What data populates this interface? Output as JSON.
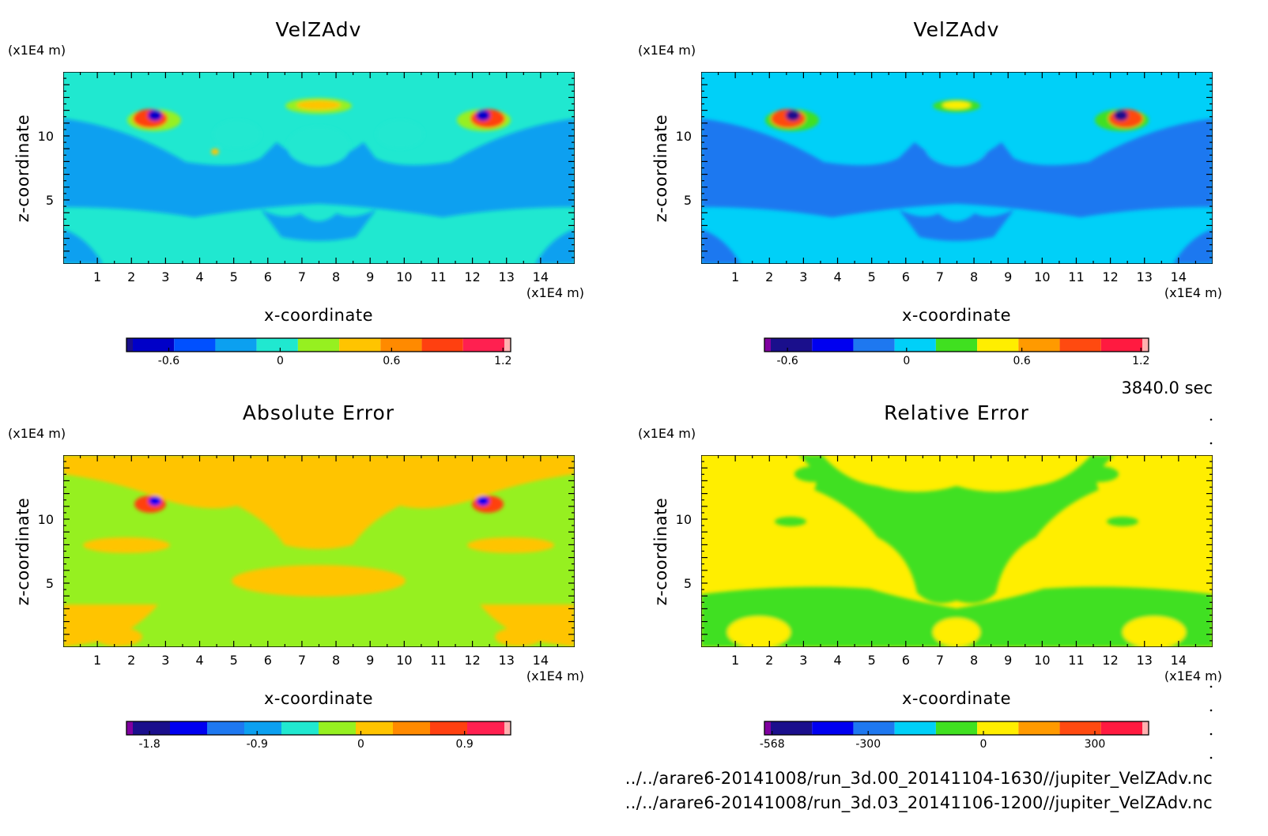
{
  "time_label": "3840.0 sec",
  "footer": {
    "line1": "../../arare6-20141008/run_3d.00_20141104-1630//jupiter_VelZAdv.nc",
    "line2": "../../arare6-20141008/run_3d.03_20141106-1200//jupiter_VelZAdv.nc"
  },
  "chart_data": [
    {
      "type": "heatmap",
      "title": "VelZAdv",
      "xlabel": "x-coordinate",
      "ylabel": "z-coordinate",
      "x_unit": "(x1E4 m)",
      "y_unit": "(x1E4 m)",
      "xlim": [
        0,
        15
      ],
      "ylim": [
        0,
        15
      ],
      "x_ticks": [
        1,
        2,
        3,
        4,
        5,
        6,
        7,
        8,
        9,
        10,
        11,
        12,
        13,
        14
      ],
      "y_ticks": [
        5,
        10
      ],
      "background_level": "0",
      "colorbar": {
        "colors": [
          "#1a0f8c",
          "#0000c8",
          "#0050ff",
          "#0ca0f0",
          "#20e8d0",
          "#96f020",
          "#ffc400",
          "#ff8a00",
          "#ff4010",
          "#ff2050",
          "#ffb0b0"
        ],
        "tick_labels": [
          "-0.6",
          "0",
          "0.6",
          "1.2"
        ],
        "tick_fracs": [
          0.11,
          0.4,
          0.69,
          0.98
        ]
      }
    },
    {
      "type": "heatmap",
      "title": "VelZAdv",
      "xlabel": "x-coordinate",
      "ylabel": "z-coordinate",
      "x_unit": "(x1E4 m)",
      "y_unit": "(x1E4 m)",
      "xlim": [
        0,
        15
      ],
      "ylim": [
        0,
        15
      ],
      "x_ticks": [
        1,
        2,
        3,
        4,
        5,
        6,
        7,
        8,
        9,
        10,
        11,
        12,
        13,
        14
      ],
      "y_ticks": [
        5,
        10
      ],
      "background_level": "0",
      "colorbar": {
        "colors": [
          "#8000a0",
          "#1a0f8c",
          "#0000f0",
          "#1e78f0",
          "#00d0f8",
          "#40e020",
          "#ffee00",
          "#ff9a00",
          "#ff4a10",
          "#ff1a40",
          "#ffb0b0"
        ],
        "tick_labels": [
          "-0.6",
          "0",
          "0.6",
          "1.2"
        ],
        "tick_fracs": [
          0.06,
          0.37,
          0.67,
          0.98
        ]
      }
    },
    {
      "type": "heatmap",
      "title": "Absolute Error",
      "xlabel": "x-coordinate",
      "ylabel": "z-coordinate",
      "x_unit": "(x1E4 m)",
      "y_unit": "(x1E4 m)",
      "xlim": [
        0,
        15
      ],
      "ylim": [
        0,
        15
      ],
      "x_ticks": [
        1,
        2,
        3,
        4,
        5,
        6,
        7,
        8,
        9,
        10,
        11,
        12,
        13,
        14
      ],
      "y_ticks": [
        5,
        10
      ],
      "background_level": "0",
      "colorbar": {
        "colors": [
          "#8000a0",
          "#1a0f8c",
          "#0000f0",
          "#1e78f0",
          "#0ca0f0",
          "#20e8d0",
          "#96f020",
          "#ffc400",
          "#ff8a00",
          "#ff4010",
          "#ff2050",
          "#ffb0b0"
        ],
        "tick_labels": [
          "-1.8",
          "-0.9",
          "0",
          "0.9"
        ],
        "tick_fracs": [
          0.06,
          0.34,
          0.61,
          0.88
        ]
      }
    },
    {
      "type": "heatmap",
      "title": "Relative Error",
      "xlabel": "x-coordinate",
      "ylabel": "z-coordinate",
      "x_unit": "(x1E4 m)",
      "y_unit": "(x1E4 m)",
      "xlim": [
        0,
        15
      ],
      "ylim": [
        0,
        15
      ],
      "x_ticks": [
        1,
        2,
        3,
        4,
        5,
        6,
        7,
        8,
        9,
        10,
        11,
        12,
        13,
        14
      ],
      "y_ticks": [
        5,
        10
      ],
      "background_level": "0",
      "colorbar": {
        "colors": [
          "#8000a0",
          "#1a0f8c",
          "#0000f0",
          "#1e78f0",
          "#00d0f8",
          "#40e020",
          "#ffee00",
          "#ff9a00",
          "#ff4a10",
          "#ff1a40",
          "#ffb0b0"
        ],
        "tick_labels": [
          "-568",
          "-300",
          "0",
          "300"
        ],
        "tick_fracs": [
          0.02,
          0.27,
          0.57,
          0.86
        ]
      }
    }
  ]
}
